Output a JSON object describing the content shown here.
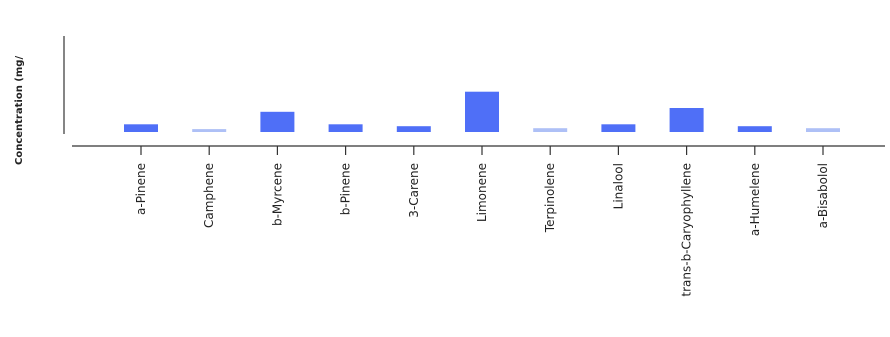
{
  "chart_data": {
    "type": "bar",
    "title": "",
    "xlabel": "",
    "ylabel": "Concentration (mg/",
    "categories": [
      "a-Pinene",
      "Camphene",
      "b-Myrcene",
      "b-Pinene",
      "3-Carene",
      "Limonene",
      "Terpinolene",
      "Linalool",
      "trans-b-Caryophyllene",
      "a-Humelene",
      "a-Bisabolol"
    ],
    "values": [
      1.6,
      0.6,
      4.2,
      1.6,
      1.2,
      8.4,
      0.8,
      1.6,
      5.0,
      1.2,
      0.8
    ],
    "ylim": [
      0,
      20
    ],
    "grid": false,
    "colors": {
      "bar": "#4f6ff7",
      "bar_light": "#aec0f6",
      "axis": "#333333"
    },
    "light_bars": [
      "Camphene",
      "Terpinolene",
      "a-Bisabolol"
    ]
  }
}
